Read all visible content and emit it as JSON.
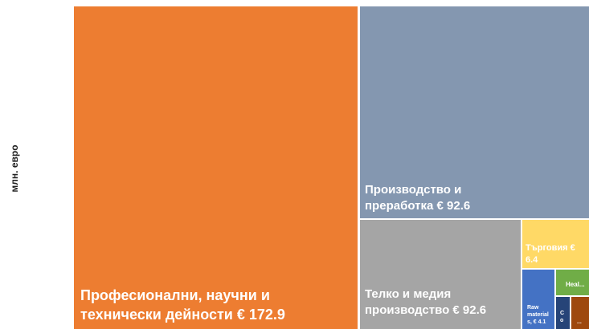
{
  "chart_data": {
    "type": "treemap",
    "y_label": "млн. евро",
    "categories": [
      "Професионални, научни и технически дейности",
      "Производство и преработка",
      "Телко и медия производство",
      "Търговия",
      "Raw materials,",
      "Heal...",
      "C o",
      "..."
    ],
    "values": [
      172.9,
      92.6,
      92.6,
      6.4,
      4.1,
      2.5,
      1.2,
      1.5
    ],
    "value_labels": [
      "€ 172.9",
      "€ 92.6",
      "€ 92.6",
      "€ 6.4",
      "€ 4.1",
      null,
      null,
      null
    ],
    "colors": [
      "#ED7D31",
      "#8497B0",
      "#A5A5A5",
      "#FFD966",
      "#4472C4",
      "#70AD47",
      "#264478",
      "#9E480E"
    ]
  }
}
